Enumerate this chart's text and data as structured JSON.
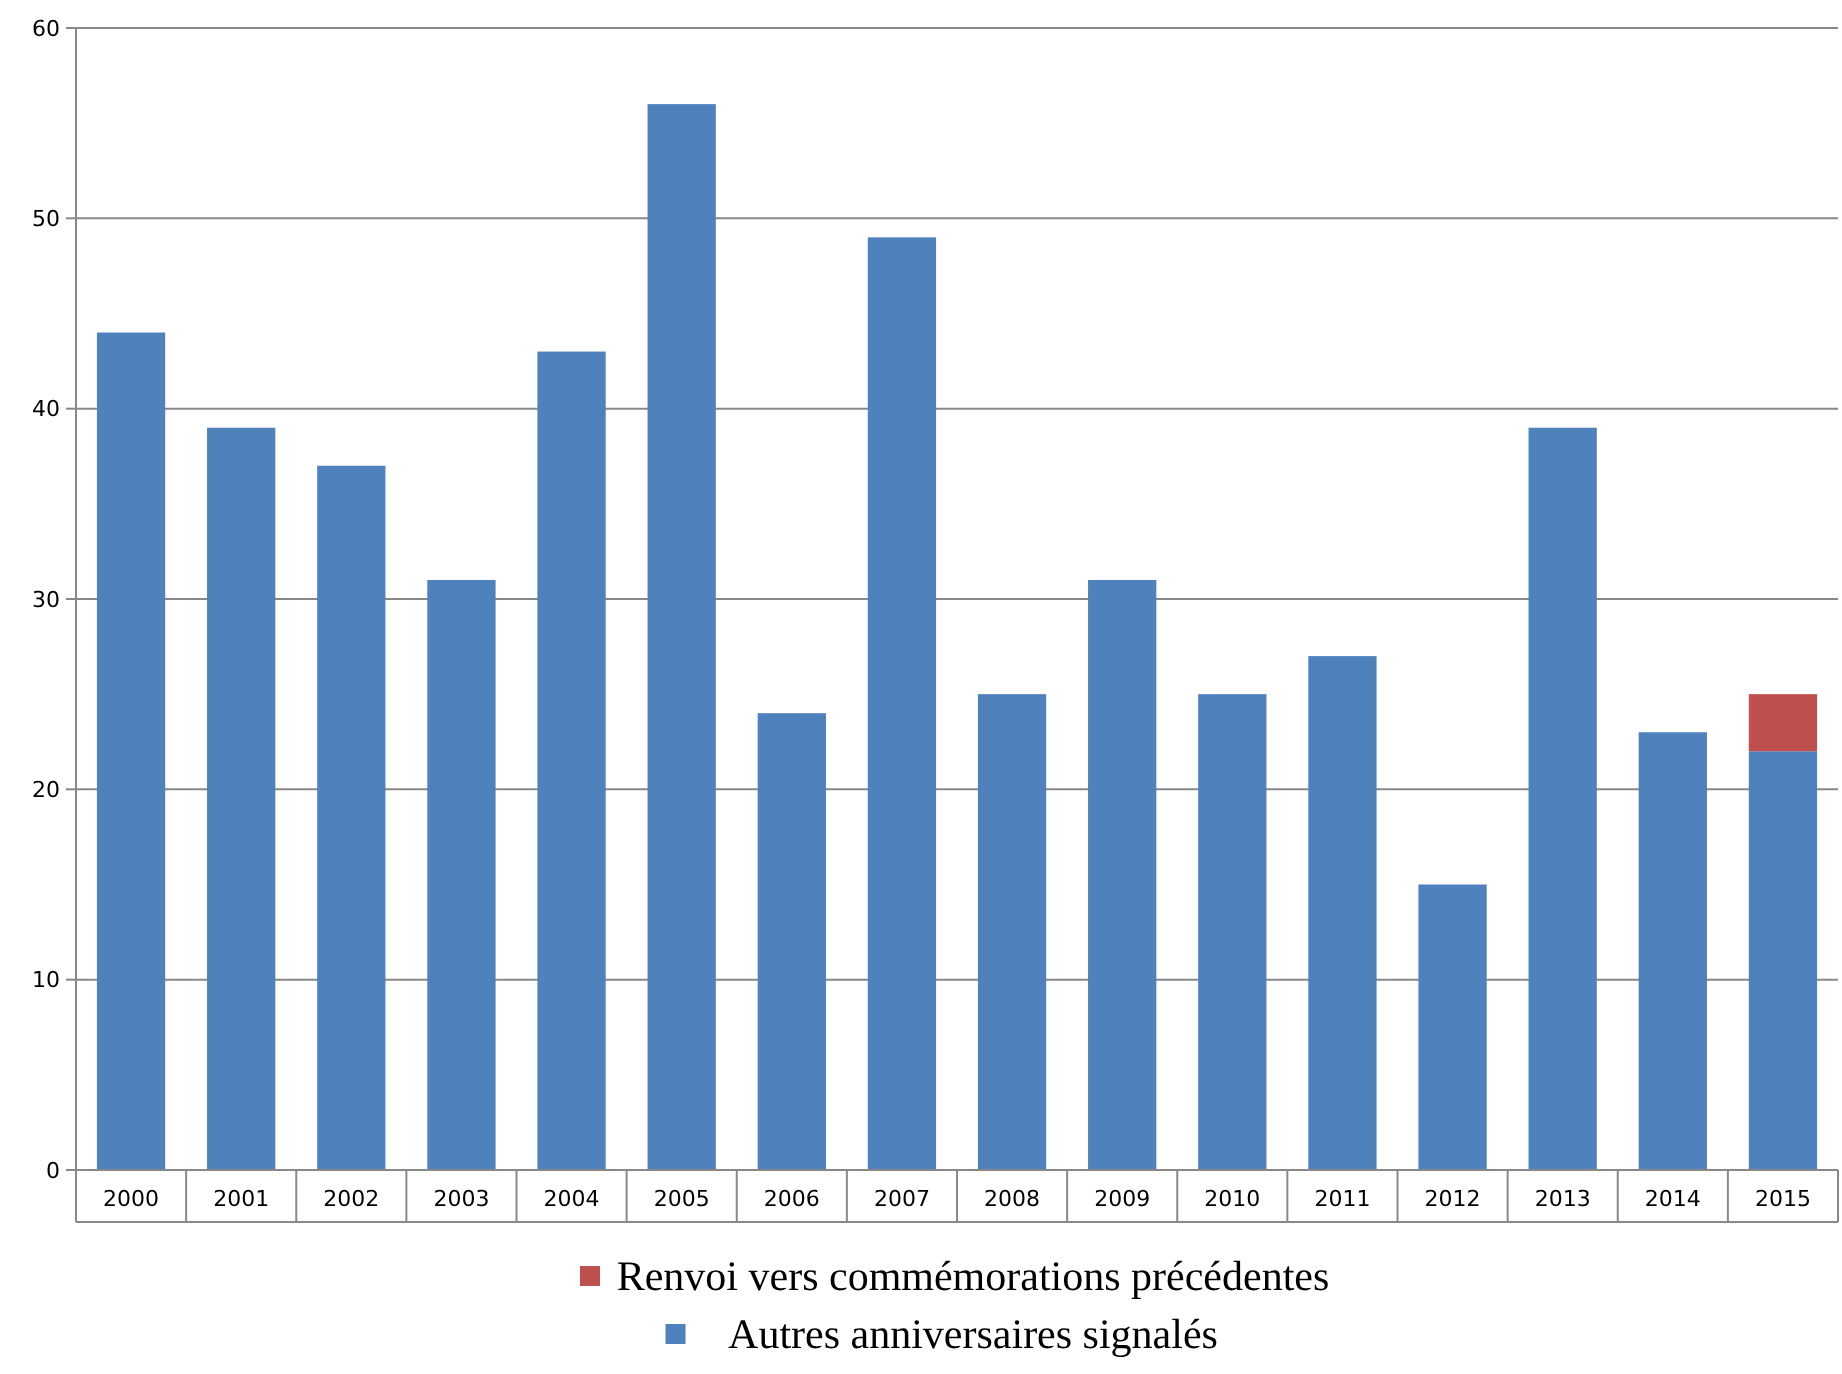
{
  "chart_data": {
    "type": "bar",
    "stacked": true,
    "categories": [
      "2000",
      "2001",
      "2002",
      "2003",
      "2004",
      "2005",
      "2006",
      "2007",
      "2008",
      "2009",
      "2010",
      "2011",
      "2012",
      "2013",
      "2014",
      "2015"
    ],
    "series": [
      {
        "name": "Autres anniversaires signalés",
        "color": "#4f81bd",
        "values": [
          44,
          39,
          37,
          31,
          43,
          56,
          24,
          49,
          25,
          31,
          25,
          27,
          15,
          39,
          23,
          22
        ]
      },
      {
        "name": "Renvoi vers commémorations précédentes",
        "color": "#c0504d",
        "values": [
          null,
          null,
          null,
          null,
          null,
          null,
          null,
          null,
          null,
          null,
          null,
          null,
          null,
          null,
          null,
          3
        ]
      }
    ],
    "ylim": [
      0,
      60
    ],
    "yticks": [
      0,
      10,
      20,
      30,
      40,
      50,
      60
    ],
    "grid": "y",
    "legend": "bottom"
  }
}
